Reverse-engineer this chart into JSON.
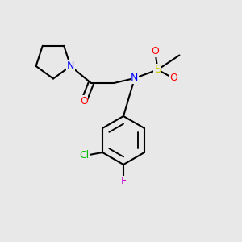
{
  "bg_color": "#e8e8e8",
  "bond_color": "#000000",
  "bond_lw": 1.5,
  "atom_colors": {
    "N": "#0000ff",
    "O": "#ff0000",
    "S": "#cccc00",
    "Cl": "#00bb00",
    "F": "#cc00cc"
  },
  "font_size": 9,
  "font_size_small": 8
}
